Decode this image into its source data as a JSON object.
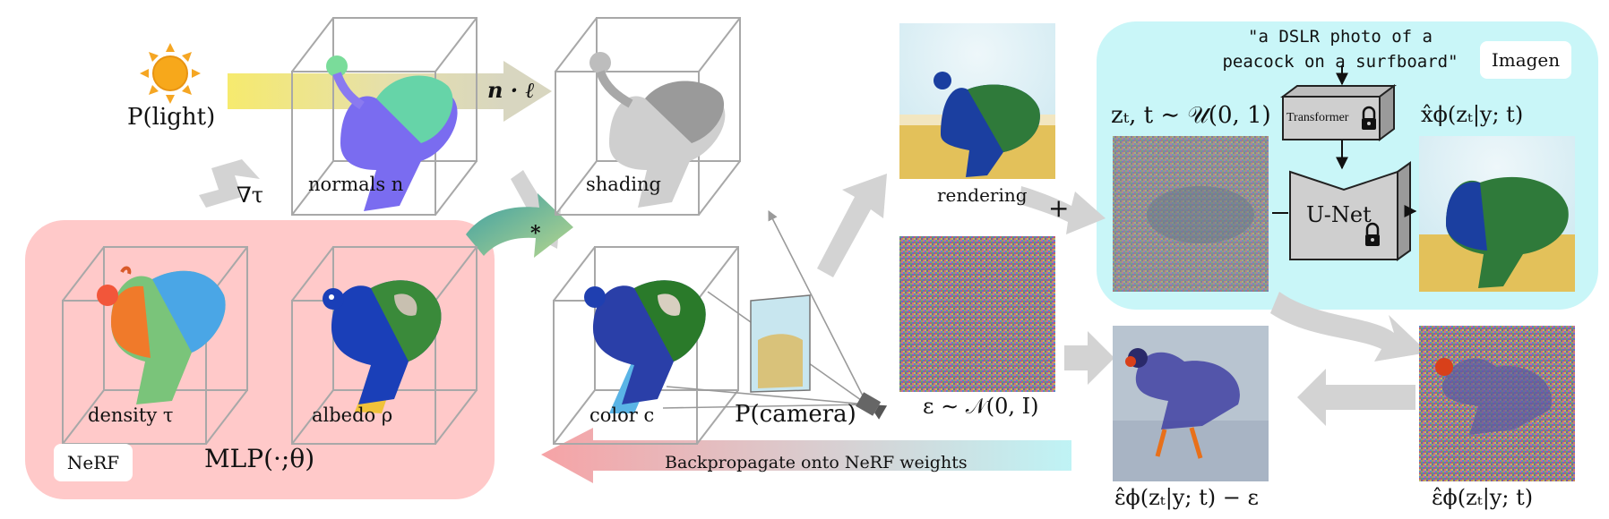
{
  "colors": {
    "nerf_panel": "#ffc9c9",
    "imagen_panel": "#c9f6f8",
    "arrow_gray": "#d3d3d3",
    "light_beam": "#f4e97a",
    "backprop_start": "#f6a3a6",
    "backprop_end": "#bff3f5",
    "surface_grad_start": "#3a9ea4",
    "surface_grad_end": "#b6d68d"
  },
  "icons": [
    "sun-icon",
    "camera-icon",
    "lock-icon"
  ],
  "light": {
    "label": "P(light)"
  },
  "stages": {
    "normals": "normals n",
    "dot": "n · ℓ",
    "shading": "shading",
    "color": "color c",
    "gradient": "∇τ",
    "star": "*"
  },
  "nerf": {
    "tag": "NeRF",
    "density": "density τ",
    "albedo": "albedo ρ",
    "mlp": "MLP(·;θ)"
  },
  "camera": {
    "label": "P(camera)"
  },
  "backprop": {
    "label": "Backpropagate onto NeRF weights"
  },
  "render": {
    "rendering": "rendering",
    "plus": "+",
    "noise": "ε ∼ 𝒩(0, I)"
  },
  "imagen": {
    "tag": "Imagen",
    "prompt_line1": "\"a DSLR photo of a",
    "prompt_line2": "peacock on a surfboard\"",
    "zt": "zₜ, t ∼ 𝒰(0, 1)",
    "transformer": "Transformer",
    "unet": "U-Net",
    "xhat": "x̂ϕ(zₜ|y; t)"
  },
  "outputs": {
    "eps_hat": "ε̂ϕ(zₜ|y; t)",
    "residual": "ε̂ϕ(zₜ|y; t) − ε"
  }
}
